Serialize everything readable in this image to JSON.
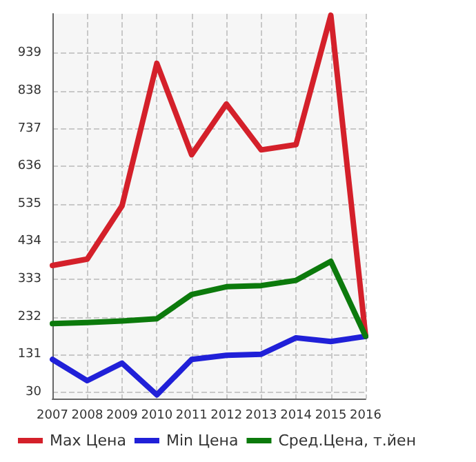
{
  "chart_data": {
    "type": "line",
    "categories": [
      "2007",
      "2008",
      "2009",
      "2010",
      "2011",
      "2012",
      "2013",
      "2014",
      "2015",
      "2016"
    ],
    "series": [
      {
        "name": "Max Цена",
        "color": "#d4202a",
        "values": [
          370,
          387,
          530,
          912,
          667,
          803,
          680,
          694,
          1041,
          180
        ]
      },
      {
        "name": "Min Цена",
        "color": "#2020d8",
        "values": [
          118,
          61,
          108,
          23,
          118,
          129,
          132,
          176,
          166,
          180
        ]
      },
      {
        "name": "Сред.Цена, т.йен",
        "color": "#0c7a0c",
        "values": [
          214,
          217,
          221,
          227,
          292,
          313,
          316,
          330,
          381,
          180
        ]
      }
    ],
    "ylim": [
      13,
      1045
    ],
    "yticks": [
      30,
      131,
      232,
      333,
      434,
      535,
      636,
      737,
      838,
      939
    ],
    "grid": true,
    "legend": "bottom",
    "marker": "none",
    "line_style": "solid"
  }
}
